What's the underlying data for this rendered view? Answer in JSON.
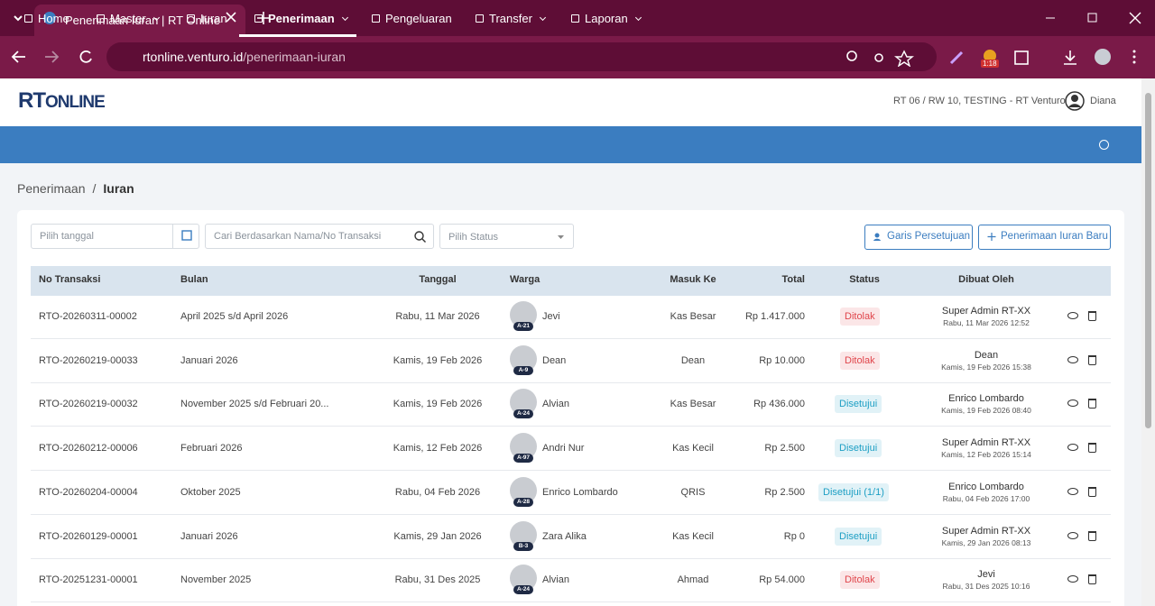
{
  "browser": {
    "tab_title": "Penerimaan Iuran | RT Online",
    "url_host": "rtonline.venturo.id",
    "url_path": "/penerimaan-iuran",
    "badge": "1:18"
  },
  "header": {
    "logo_a": "RT",
    "logo_b": "ONLINE",
    "org": "RT 06 / RW 10, TESTING - RT Venturo",
    "user": "Diana"
  },
  "nav": {
    "items": [
      "Home",
      "Master",
      "Iuran",
      "Penerimaan",
      "Pengeluaran",
      "Transfer",
      "Laporan"
    ],
    "dropdown": [
      false,
      true,
      false,
      true,
      false,
      true,
      true
    ],
    "active": 3
  },
  "breadcrumb": [
    "Penerimaan",
    "Iuran"
  ],
  "filters": {
    "date": "Pilih tanggal",
    "search": "Cari Berdasarkan Nama/No Transaksi",
    "status": "Pilih Status"
  },
  "buttons": [
    "Garis Persetujuan",
    "Penerimaan Iuran Baru"
  ],
  "table": {
    "columns": [
      "No Transaksi",
      "Bulan",
      "Tanggal",
      "Warga",
      "Masuk Ke",
      "Total",
      "Status",
      "Dibuat Oleh"
    ],
    "rows": [
      {
        "no": "RTO-20260311-00002",
        "bulan": "April 2025 s/d April 2026",
        "tanggal": "Rabu, 11 Mar 2026",
        "unit": "A-21",
        "warga": "Jevi",
        "masuk": "Kas Besar",
        "total": "Rp 1.417.000",
        "status": "Ditolak",
        "status_color": "#e0464c",
        "by": "Super Admin RT-XX",
        "at": "Rabu, 11 Mar 2026 12:52"
      },
      {
        "no": "RTO-20260219-00033",
        "bulan": "Januari 2026",
        "tanggal": "Kamis, 19 Feb 2026",
        "unit": "A-9",
        "warga": "Dean",
        "masuk": "Dean",
        "total": "Rp 10.000",
        "status": "Ditolak",
        "status_color": "#e0464c",
        "by": "Dean",
        "at": "Kamis, 19 Feb 2026 15:38"
      },
      {
        "no": "RTO-20260219-00032",
        "bulan": "November 2025 s/d Februari 20...",
        "tanggal": "Kamis, 19 Feb 2026",
        "unit": "A-24",
        "warga": "Alvian",
        "masuk": "Kas Besar",
        "total": "Rp 436.000",
        "status": "Disetujui",
        "status_color": "#1d9fc4",
        "by": "Enrico Lombardo",
        "at": "Kamis, 19 Feb 2026 08:40"
      },
      {
        "no": "RTO-20260212-00006",
        "bulan": "Februari 2026",
        "tanggal": "Kamis, 12 Feb 2026",
        "unit": "A-97",
        "warga": "Andri Nur",
        "masuk": "Kas Kecil",
        "total": "Rp 2.500",
        "status": "Disetujui",
        "status_color": "#1d9fc4",
        "by": "Super Admin RT-XX",
        "at": "Kamis, 12 Feb 2026 15:14"
      },
      {
        "no": "RTO-20260204-00004",
        "bulan": "Oktober 2025",
        "tanggal": "Rabu, 04 Feb 2026",
        "unit": "A-28",
        "warga": "Enrico Lombardo",
        "masuk": "QRIS",
        "total": "Rp 2.500",
        "status": "Disetujui (1/1)",
        "status_color": "#1d9fc4",
        "by": "Enrico Lombardo",
        "at": "Rabu, 04 Feb 2026 17:00"
      },
      {
        "no": "RTO-20260129-00001",
        "bulan": "Januari 2026",
        "tanggal": "Kamis, 29 Jan 2026",
        "unit": "B-3",
        "warga": "Zara Alika",
        "masuk": "Kas Kecil",
        "total": "Rp 0",
        "status": "Disetujui",
        "status_color": "#1d9fc4",
        "by": "Super Admin RT-XX",
        "at": "Kamis, 29 Jan 2026 08:13"
      },
      {
        "no": "RTO-20251231-00001",
        "bulan": "November 2025",
        "tanggal": "Rabu, 31 Des 2025",
        "unit": "A-24",
        "warga": "Alvian",
        "masuk": "Ahmad",
        "total": "Rp 54.000",
        "status": "Ditolak",
        "status_color": "#e0464c",
        "by": "Jevi",
        "at": "Rabu, 31 Des 2025 10:16"
      }
    ]
  }
}
